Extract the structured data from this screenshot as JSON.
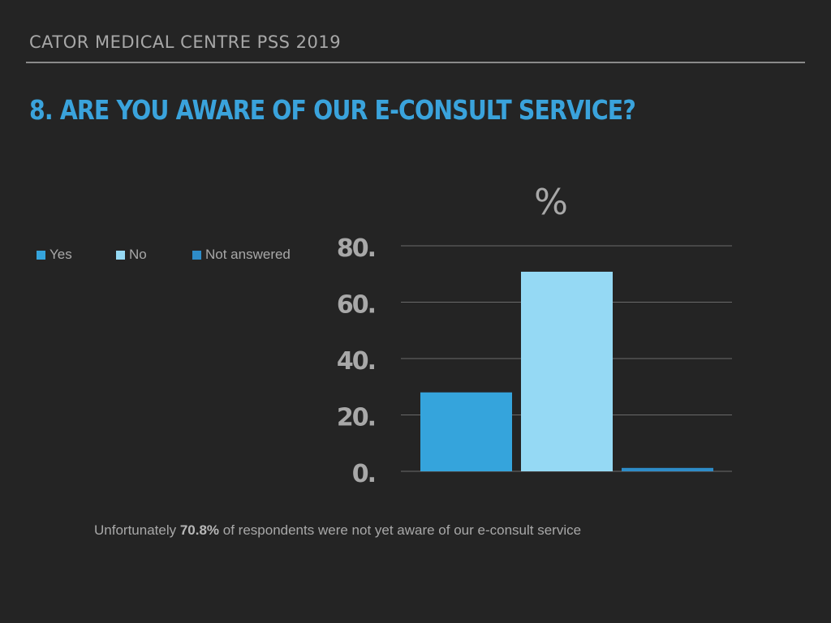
{
  "slide": {
    "header": "CATOR MEDICAL CENTRE PSS 2019",
    "question": "8. ARE YOU AWARE OF OUR E-CONSULT SERVICE?",
    "footer": {
      "prefix": "Unfortunately ",
      "highlight": "70.8%",
      "suffix": " of respondents were not yet aware of our e-consult service"
    }
  },
  "colors": {
    "yes": "#35a4dc",
    "no": "#95d9f4",
    "not_answered": "#2e8cc8",
    "grid": "#6a6a6a",
    "tick": "#a8a8a8"
  },
  "chart_data": {
    "type": "bar",
    "title": "%",
    "categories": [
      "Yes",
      "No",
      "Not answered"
    ],
    "values": [
      28,
      70.8,
      1.2
    ],
    "ylim": [
      0,
      80
    ],
    "yticks": [
      0,
      20,
      40,
      60,
      80
    ],
    "ytick_labels": [
      "0.",
      "20.",
      "40.",
      "60.",
      "80."
    ],
    "xlabel": "",
    "ylabel": "",
    "grid": true,
    "legend_position": "left"
  }
}
